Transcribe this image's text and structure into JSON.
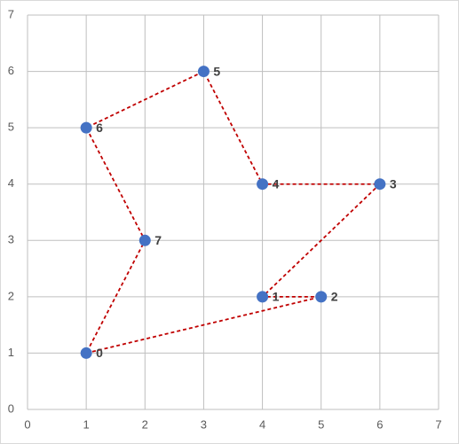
{
  "chart_data": {
    "type": "scatter",
    "series": [
      {
        "labels": [
          "0",
          "2",
          "1",
          "3",
          "4",
          "5",
          "6",
          "7"
        ],
        "x": [
          1,
          5,
          4,
          6,
          4,
          3,
          1,
          2
        ],
        "values": [
          1,
          2,
          2,
          4,
          4,
          6,
          5,
          3
        ],
        "color": "#4472c4",
        "line_color": "#c00000",
        "closed": true
      }
    ],
    "xlim": [
      0,
      7
    ],
    "ylim": [
      0,
      7
    ],
    "xticks": [
      0,
      1,
      2,
      3,
      4,
      5,
      6,
      7
    ],
    "yticks": [
      0,
      1,
      2,
      3,
      4,
      5,
      6,
      7
    ],
    "grid": true
  }
}
